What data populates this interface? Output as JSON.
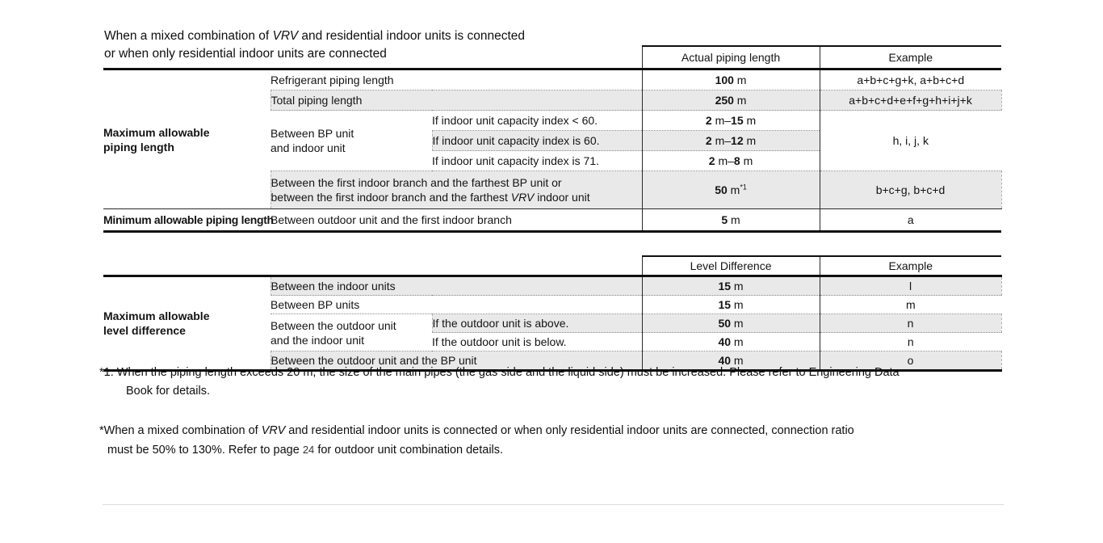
{
  "title": {
    "line1_pre": "When a mixed combination of ",
    "line1_italic": "VRV",
    "line1_post": " and residential indoor units is connected",
    "line2": "or when only residential indoor units are connected"
  },
  "table1": {
    "header": {
      "col_value": "Actual piping length",
      "col_example": "Example"
    },
    "group_max_label_line1": "Maximum allowable",
    "group_max_label_line2": "piping length",
    "row_refrigerant": {
      "label": "Refrigerant piping length",
      "value": "100 m",
      "example": "a+b+c+g+k, a+b+c+d"
    },
    "row_total": {
      "label": "Total piping length",
      "value": "250 m",
      "example": "a+b+c+d+e+f+g+h+i+j+k"
    },
    "bp_group": {
      "label_line1": "Between BP unit",
      "label_line2": "and indoor unit",
      "row_lt60": {
        "label": "If indoor unit capacity index < 60.",
        "value": "2 m–15 m"
      },
      "row_is60": {
        "label": "If indoor unit capacity index is 60.",
        "value": "2 m–12 m"
      },
      "row_is71": {
        "label": "If indoor unit capacity index is 71.",
        "value": "2 m–8 m"
      },
      "example": "h, i, j, k"
    },
    "row_branch": {
      "label_line1": "Between the first indoor branch and the farthest BP unit or",
      "label_line2_pre": "between the first indoor branch and the farthest ",
      "label_line2_italic": "VRV",
      "label_line2_post": " indoor unit",
      "value": "50 m",
      "value_sup": "*1",
      "example": "b+c+g, b+c+d"
    },
    "group_min_label": "Minimum allowable piping length",
    "row_min": {
      "label": "Between outdoor unit and the first indoor branch",
      "value": "5 m",
      "example": "a"
    }
  },
  "table2": {
    "header": {
      "col_value": "Level Difference",
      "col_example": "Example"
    },
    "group_label_line1": "Maximum allowable",
    "group_label_line2": "level difference",
    "row_indoor": {
      "label": "Between the indoor units",
      "value": "15 m",
      "example": "l"
    },
    "row_bp": {
      "label": "Between BP units",
      "value": "15 m",
      "example": "m"
    },
    "outdoor_group": {
      "label_line1": "Between the outdoor unit",
      "label_line2": "and the indoor unit",
      "row_above": {
        "label": "If the outdoor unit is above.",
        "value": "50 m",
        "example": "n"
      },
      "row_below": {
        "label": "If the outdoor unit is below.",
        "value": "40 m",
        "example": "n"
      }
    },
    "row_outdoor_bp": {
      "label": "Between the outdoor unit and the BP unit",
      "value": "40 m",
      "example": "o"
    }
  },
  "footnotes": {
    "fn1_line1": "*1. When the piping length exceeds 20 m, the size of the main pipes (the gas side and the liquid side) must be increased. Please refer to Engineering Data",
    "fn1_line2": "Book for details.",
    "fn2_line1_pre": "*When a mixed combination of ",
    "fn2_line1_italic": "VRV",
    "fn2_line1_post": " and residential indoor units is connected or when only residential indoor units are connected, connection ratio",
    "fn2_line2_pre": "must be 50% to 130%. Refer to page ",
    "fn2_line2_xref": "24",
    "fn2_line2_post": " for outdoor unit combination details."
  }
}
